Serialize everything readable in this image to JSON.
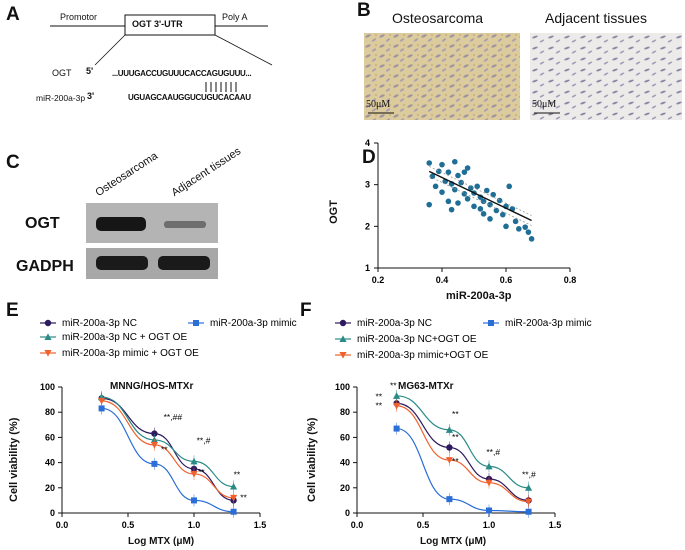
{
  "panels": {
    "a": "A",
    "b": "B",
    "c": "C",
    "d": "D",
    "e": "E",
    "f": "F"
  },
  "panel_a": {
    "promotor": "Promotor",
    "utr": "OGT 3'-UTR",
    "polya": "Poly A",
    "ogt_label": "OGT",
    "ogt_5": "5'",
    "ogt_seq": "...UUUGACCUGUUUCACCAGUGUUU...",
    "mir_label": "miR-200a-3p",
    "mir_3": "3'",
    "mir_seq": "UGUAGCAAUGGUCUGUCACAAU"
  },
  "panel_b": {
    "title_left": "Osteosarcoma",
    "title_right": "Adjacent tissues",
    "scale_left": "50μM",
    "scale_right": "50μM"
  },
  "panel_c": {
    "lane1": "Osteosarcoma",
    "lane2": "Adjacent tissues",
    "row1": "OGT",
    "row2": "GADPH"
  },
  "colors": {
    "nc": "#2e1a5e",
    "mimic": "#2b6ed8",
    "nc_oe": "#2a8a86",
    "mimic_oe": "#f0612e",
    "scatter": "#1f6e96"
  },
  "chart_data": [
    {
      "type": "scatter",
      "panel": "D",
      "xlabel": "miR-200a-3p",
      "ylabel": "OGT",
      "xlim": [
        0.2,
        0.8
      ],
      "ylim": [
        1,
        4
      ],
      "xticks": [
        "0.2",
        "0.4",
        "0.6",
        "0.8"
      ],
      "yticks": [
        "1",
        "2",
        "3",
        "4"
      ],
      "points": [
        [
          0.36,
          3.52
        ],
        [
          0.37,
          3.2
        ],
        [
          0.38,
          2.96
        ],
        [
          0.39,
          3.32
        ],
        [
          0.4,
          3.48
        ],
        [
          0.4,
          2.82
        ],
        [
          0.41,
          3.08
        ],
        [
          0.42,
          3.3
        ],
        [
          0.42,
          2.6
        ],
        [
          0.43,
          3.02
        ],
        [
          0.44,
          3.55
        ],
        [
          0.44,
          2.88
        ],
        [
          0.45,
          3.22
        ],
        [
          0.45,
          2.56
        ],
        [
          0.46,
          3.05
        ],
        [
          0.47,
          2.78
        ],
        [
          0.47,
          3.3
        ],
        [
          0.48,
          2.66
        ],
        [
          0.49,
          2.92
        ],
        [
          0.5,
          2.48
        ],
        [
          0.5,
          2.8
        ],
        [
          0.51,
          2.96
        ],
        [
          0.52,
          2.7
        ],
        [
          0.52,
          2.42
        ],
        [
          0.53,
          2.6
        ],
        [
          0.54,
          2.86
        ],
        [
          0.55,
          2.52
        ],
        [
          0.55,
          2.18
        ],
        [
          0.56,
          2.76
        ],
        [
          0.57,
          2.38
        ],
        [
          0.58,
          2.62
        ],
        [
          0.59,
          2.28
        ],
        [
          0.6,
          2.48
        ],
        [
          0.6,
          2.0
        ],
        [
          0.61,
          2.96
        ],
        [
          0.62,
          2.42
        ],
        [
          0.63,
          2.12
        ],
        [
          0.64,
          1.94
        ],
        [
          0.66,
          1.98
        ],
        [
          0.67,
          1.86
        ],
        [
          0.68,
          1.7
        ],
        [
          0.36,
          2.52
        ],
        [
          0.43,
          2.4
        ],
        [
          0.48,
          3.4
        ],
        [
          0.53,
          2.3
        ]
      ],
      "fit": [
        [
          0.36,
          3.32
        ],
        [
          0.68,
          2.14
        ]
      ]
    },
    {
      "type": "line",
      "panel": "E",
      "title": "MNNG/HOS-MTXr",
      "xlabel": "Log MTX (μM)",
      "ylabel": "Cell viability (%)",
      "xlim": [
        0,
        1.5
      ],
      "ylim": [
        0,
        100
      ],
      "xticks": [
        "0.0",
        "0.5",
        "1.0",
        "1.5"
      ],
      "yticks": [
        "0",
        "20",
        "40",
        "60",
        "80",
        "100"
      ],
      "x": [
        0.3,
        0.7,
        1.0,
        1.3
      ],
      "series": [
        {
          "name": "miR-200a-3p NC",
          "values": [
            91,
            63,
            35,
            10
          ]
        },
        {
          "name": "miR-200a-3p mimic",
          "values": [
            83,
            39,
            10,
            1
          ]
        },
        {
          "name": "miR-200a-3p NC + OGT OE",
          "values": [
            92,
            58,
            41,
            21
          ]
        },
        {
          "name": "miR-200a-3p mimic + OGT OE",
          "values": [
            89,
            54,
            31,
            12
          ]
        }
      ],
      "legend": [
        "miR-200a-3p NC",
        "miR-200a-3p mimic",
        "miR-200a-3p NC + OGT OE",
        "miR-200a-3p mimic + OGT OE"
      ],
      "annotations": [
        "**,##",
        "**",
        "**,#",
        "**",
        "**",
        "**"
      ]
    },
    {
      "type": "line",
      "panel": "F",
      "title": "MG63-MTXr",
      "xlabel": "Log MTX (μM)",
      "ylabel": "Cell viability (%)",
      "xlim": [
        0,
        1.5
      ],
      "ylim": [
        0,
        100
      ],
      "xticks": [
        "0.0",
        "0.5",
        "1.0",
        "1.5"
      ],
      "yticks": [
        "0",
        "20",
        "40",
        "60",
        "80",
        "100"
      ],
      "x": [
        0.3,
        0.7,
        1.0,
        1.3
      ],
      "series": [
        {
          "name": "miR-200a-3p NC",
          "values": [
            87,
            52,
            27,
            10
          ]
        },
        {
          "name": "miR-200a-3p mimic",
          "values": [
            67,
            11,
            2,
            1
          ]
        },
        {
          "name": "miR-200a-3p NC+OGT OE",
          "values": [
            93,
            66,
            37,
            20
          ]
        },
        {
          "name": "miR-200a-3p mimic+OGT OE",
          "values": [
            85,
            42,
            24,
            9
          ]
        }
      ],
      "legend": [
        "miR-200a-3p NC",
        "miR-200a-3p mimic",
        "miR-200a-3p NC+OGT OE",
        "miR-200a-3p mimic+OGT OE"
      ],
      "annotations": [
        "**",
        "**",
        "**",
        "**",
        "**",
        "**",
        "**,#",
        "**,#"
      ]
    }
  ]
}
